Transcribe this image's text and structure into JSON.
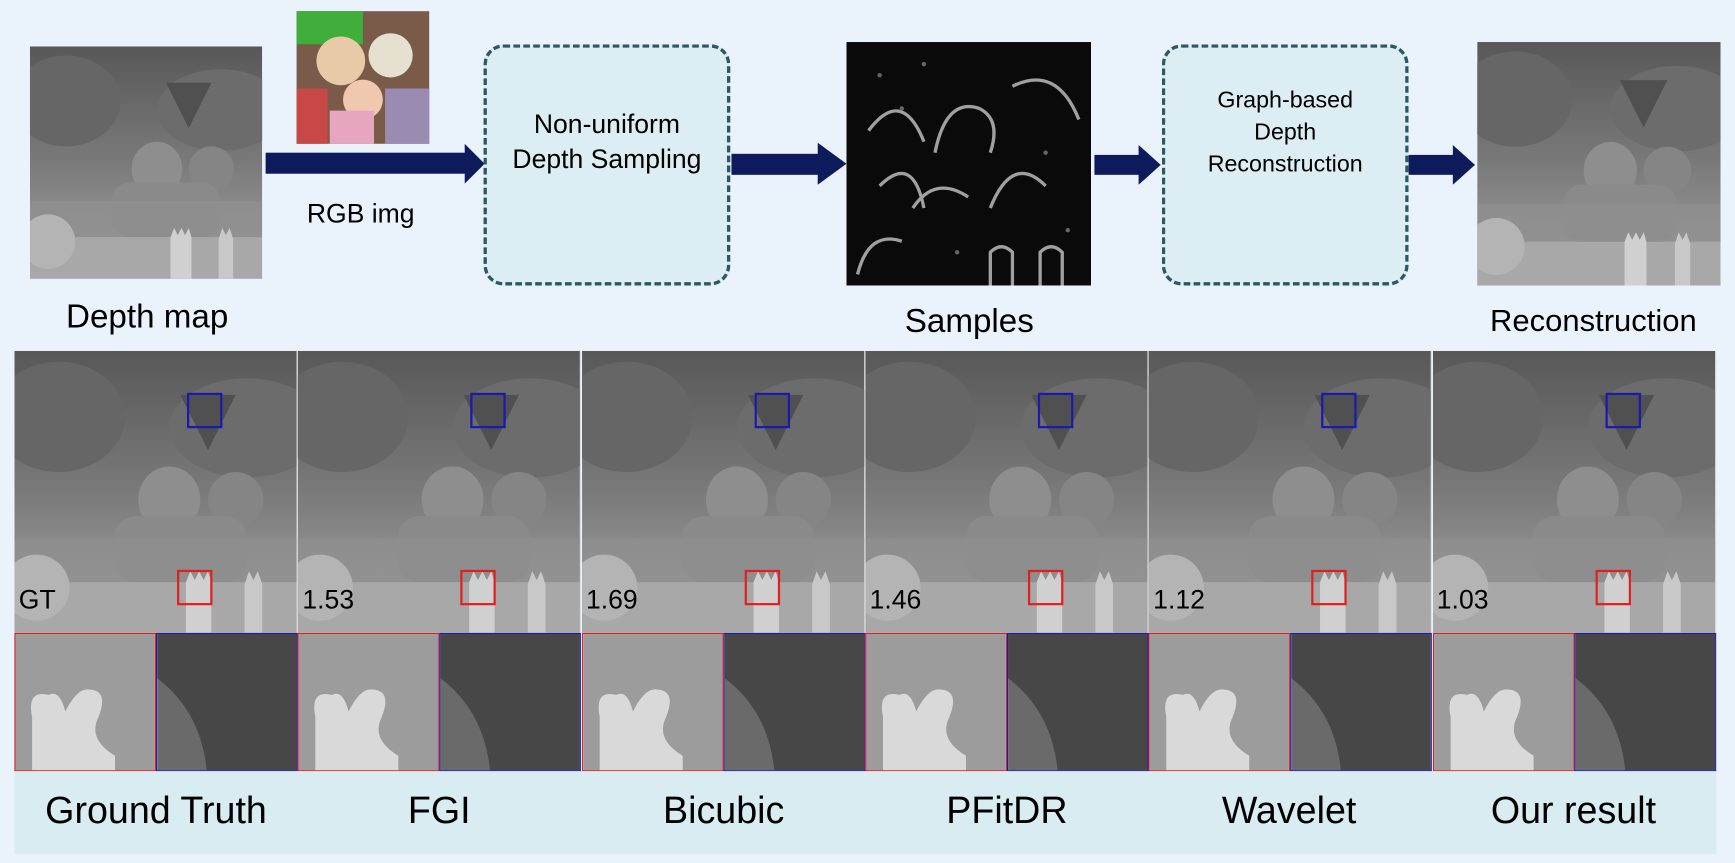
{
  "pipeline": {
    "depth_map_label": "Depth map",
    "rgb_label": "RGB img",
    "sampling_box": {
      "line1": "Non-uniform",
      "line2": "Depth Sampling"
    },
    "samples_label": "Samples",
    "reconstruction_box": {
      "line1": "Graph-based",
      "line2": "Depth",
      "line3": "Reconstruction"
    },
    "reconstruction_label": "Reconstruction"
  },
  "comparison": {
    "methods": [
      {
        "label": "Ground Truth",
        "score": "GT"
      },
      {
        "label": "FGI",
        "score": "1.53"
      },
      {
        "label": "Bicubic",
        "score": "1.69"
      },
      {
        "label": "PFitDR",
        "score": "1.46"
      },
      {
        "label": "Wavelet",
        "score": "1.12"
      },
      {
        "label": "Our result",
        "score": "1.03"
      }
    ]
  },
  "colors": {
    "background": "#eaf2fb",
    "box_fill": "#dceef3",
    "box_border": "#2b5863",
    "arrow": "#0d1a5c",
    "label_band": "#d8ecf2",
    "red_roi": "#e02020",
    "blue_roi": "#1a1ab0"
  }
}
